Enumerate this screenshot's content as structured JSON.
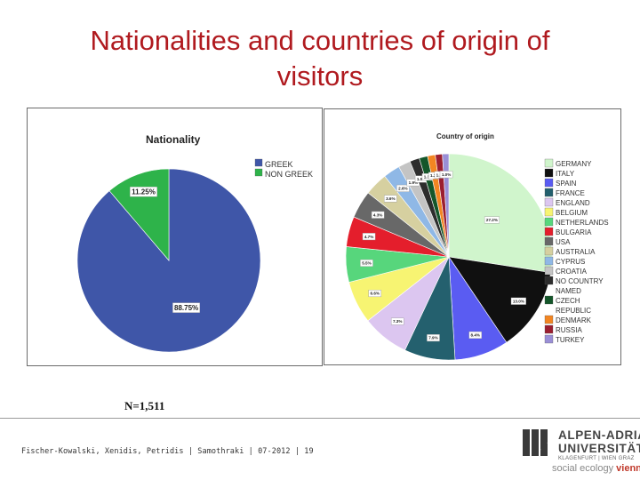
{
  "slide": {
    "title_line1": "Nationalities and countries of origin of",
    "title_line2": "visitors",
    "sample_note": "N=1,511",
    "footer": "Fischer-Kowalski, Xenidis, Petridis | Samothraki | 07-2012 | 19"
  },
  "logo": {
    "line1": "ALPEN-ADRIA",
    "line2": "UNIVERSITÄT",
    "line3": "KLAGENFURT | WIEN GRAZ",
    "dept_prefix": "social ecology",
    "dept_city": "vienna"
  },
  "chart_data": [
    {
      "type": "pie",
      "title": "Nationality",
      "legend_position": "right",
      "slices": [
        {
          "label": "GREEK",
          "value": 88.75,
          "value_label": "88.75%",
          "color": "#3f56a8"
        },
        {
          "label": "NON GREEK",
          "value": 11.25,
          "value_label": "11.25%",
          "color": "#2eb34a"
        }
      ]
    },
    {
      "type": "pie",
      "title": "Country of origin",
      "legend_position": "right",
      "slices": [
        {
          "label": "GERMANY",
          "value": 27.2,
          "value_label": "27.2%",
          "color": "#d0f5cc"
        },
        {
          "label": "ITALY",
          "value": 13.0,
          "value_label": "13.0%",
          "color": "#101010"
        },
        {
          "label": "SPAIN",
          "value": 8.4,
          "value_label": "8.4%",
          "color": "#5a5cf2"
        },
        {
          "label": "FRANCE",
          "value": 7.9,
          "value_label": "7.9%",
          "color": "#24606e"
        },
        {
          "label": "ENGLAND",
          "value": 7.3,
          "value_label": "7.3%",
          "color": "#dcc6f0"
        },
        {
          "label": "BELGIUM",
          "value": 6.6,
          "value_label": "6.6%",
          "color": "#f7f472"
        },
        {
          "label": "NETHERLANDS",
          "value": 5.5,
          "value_label": "5.5%",
          "color": "#57d67c"
        },
        {
          "label": "BULGARIA",
          "value": 4.7,
          "value_label": "4.7%",
          "color": "#e41e2c"
        },
        {
          "label": "USA",
          "value": 4.3,
          "value_label": "4.3%",
          "color": "#686868"
        },
        {
          "label": "AUSTRALIA",
          "value": 3.6,
          "value_label": "3.6%",
          "color": "#d6d0a0"
        },
        {
          "label": "CYPRUS",
          "value": 2.6,
          "value_label": "2.6%",
          "color": "#8fb8e6"
        },
        {
          "label": "CROATIA",
          "value": 1.9,
          "value_label": "1.9%",
          "color": "#c4c4c4"
        },
        {
          "label": "NO COUNTRY NAMED",
          "value": 1.5,
          "value_label": "1.5%",
          "color": "#2d2d2d"
        },
        {
          "label": "CZECH REPUBLIC",
          "value": 1.3,
          "value_label": "1.3%",
          "color": "#14562a"
        },
        {
          "label": "DENMARK",
          "value": 1.2,
          "value_label": "1.2%",
          "color": "#f28522"
        },
        {
          "label": "RUSSIA",
          "value": 1.1,
          "value_label": "1.1%",
          "color": "#9b1e30"
        },
        {
          "label": "TURKEY",
          "value": 1.0,
          "value_label": "1.0%",
          "color": "#9a8fd6"
        }
      ]
    }
  ]
}
